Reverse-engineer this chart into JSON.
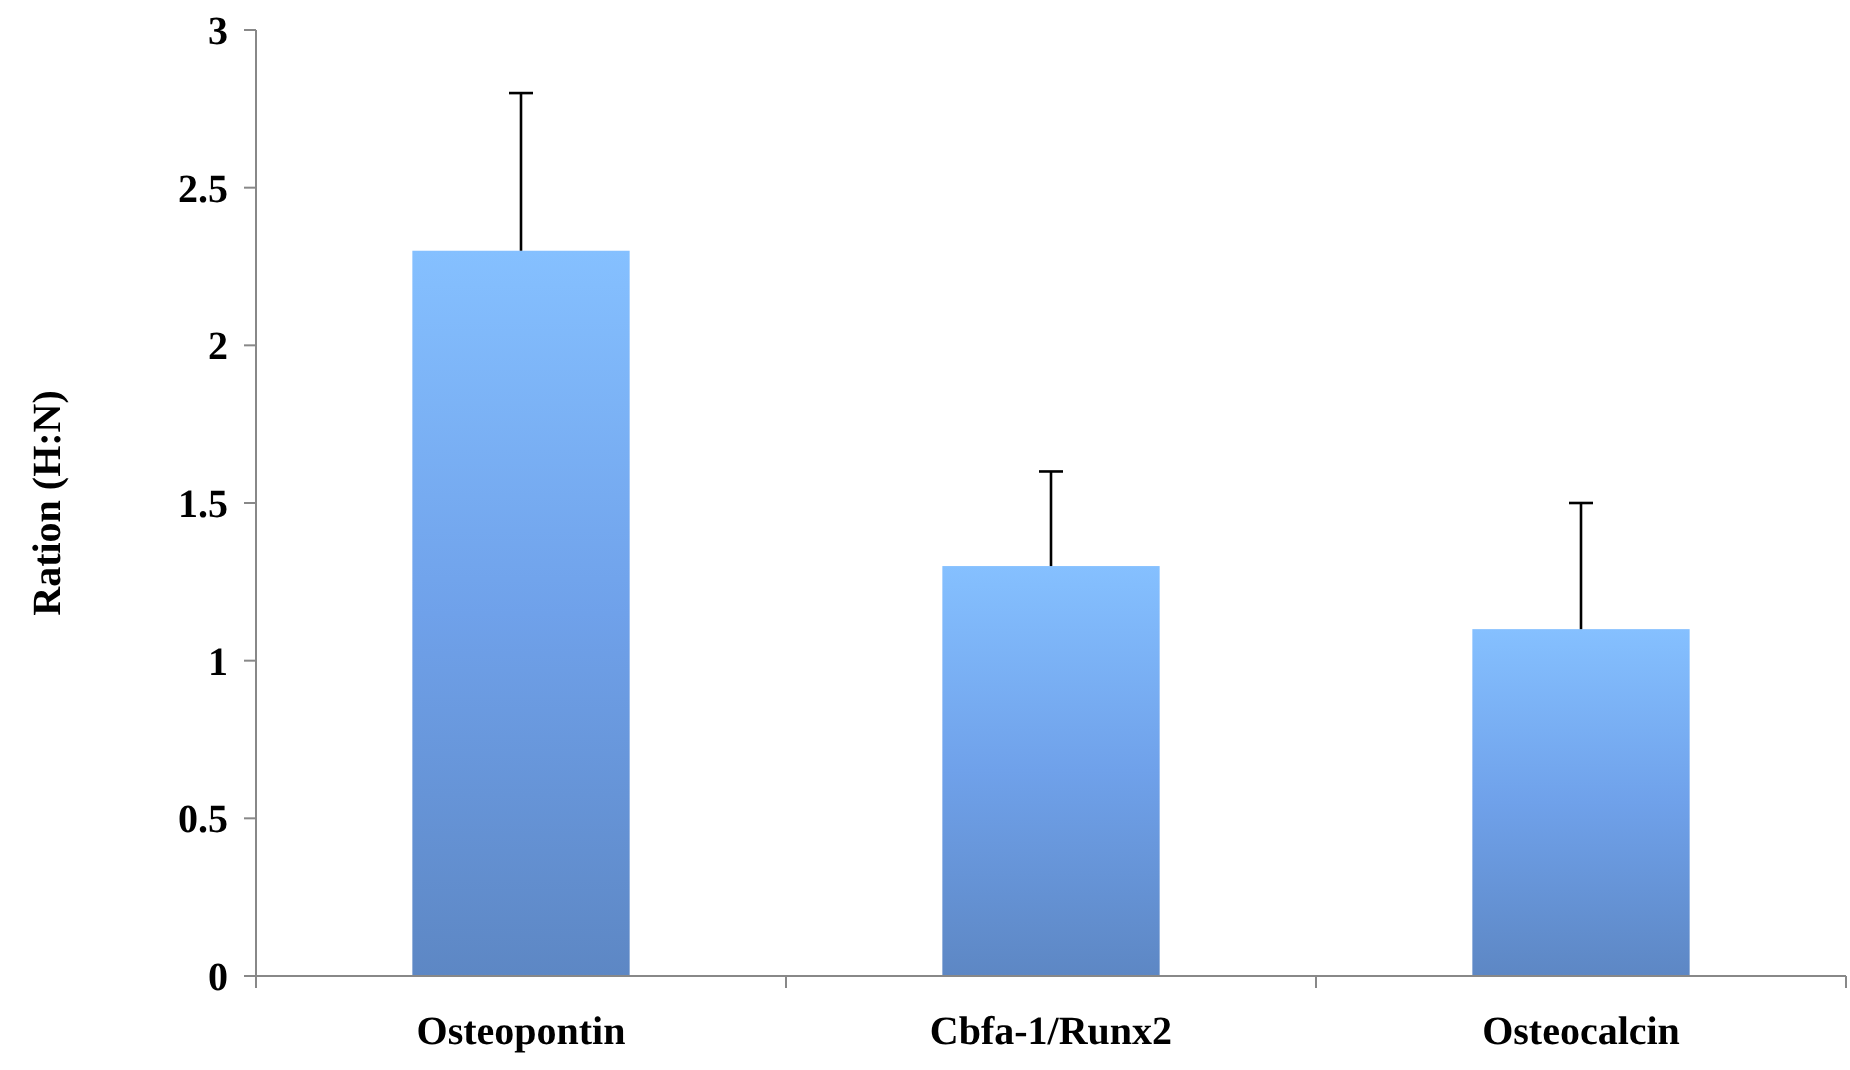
{
  "chart_data": {
    "type": "bar",
    "ylabel": "Ration (H:N)",
    "categories": [
      "Osteopontin",
      "Cbfa-1/Runx2",
      "Osteocalcin"
    ],
    "values": [
      2.3,
      1.3,
      1.1
    ],
    "errors": [
      [
        2.3,
        2.8
      ],
      [
        1.3,
        1.6
      ],
      [
        1.1,
        1.5
      ]
    ],
    "color": "#6fa1ea",
    "ylim": [
      0,
      3
    ],
    "yticks": [
      0,
      0.5,
      1,
      1.5,
      2,
      2.5,
      3
    ],
    "grid": false
  }
}
